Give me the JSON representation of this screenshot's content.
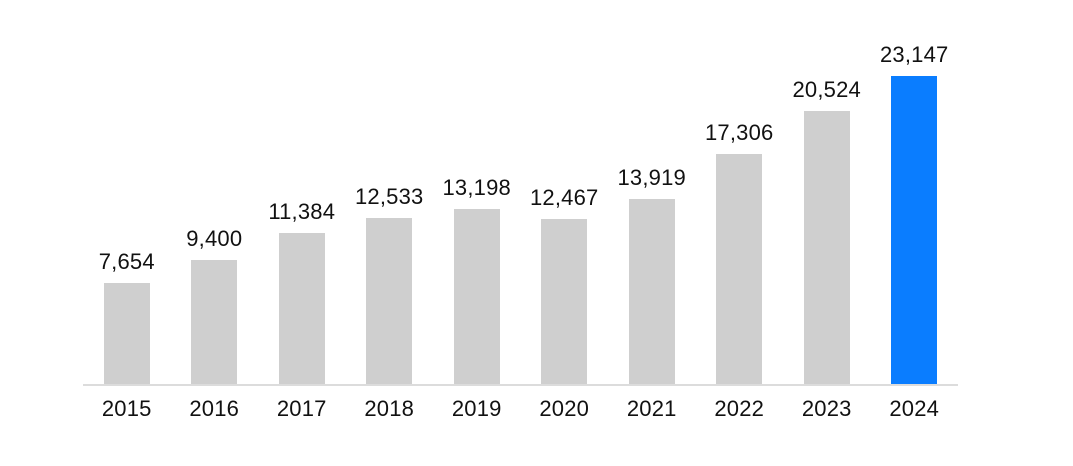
{
  "chart_data": {
    "type": "bar",
    "title": "",
    "xlabel": "",
    "ylabel": "",
    "categories": [
      "2015",
      "2016",
      "2017",
      "2018",
      "2019",
      "2020",
      "2021",
      "2022",
      "2023",
      "2024"
    ],
    "values": [
      7654,
      9400,
      11384,
      12533,
      13198,
      12467,
      13919,
      17306,
      20524,
      23147
    ],
    "value_labels": [
      "7,654",
      "9,400",
      "11,384",
      "12,533",
      "13,198",
      "12,467",
      "13,919",
      "17,306",
      "20,524",
      "23,147"
    ],
    "ylim": [
      0,
      23147
    ],
    "grid": false,
    "legend": false,
    "y_axis_visible": false,
    "x_axis_line_visible": true,
    "value_labels_visible": true,
    "highlighted_category": "2024",
    "colors": {
      "bar_default": "#CFCFCF",
      "bar_highlight": "#0A7DFF",
      "axis_line": "#DCDCDC",
      "label_text": "#111111",
      "background": "#FFFFFF"
    }
  }
}
